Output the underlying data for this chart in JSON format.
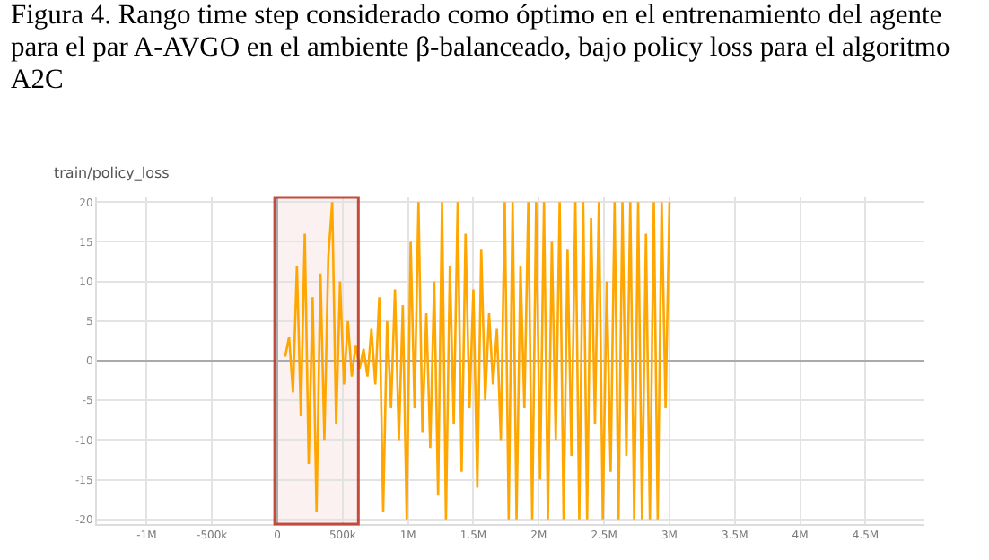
{
  "chart_data": {
    "type": "line",
    "title": "Figura 4. Rango time step considerado como óptimo en el entrenamiento del agente para el par A-AVGO en el ambiente β-balanceado, bajo policy loss para el algoritmo A2C",
    "subtitle": "train/policy_loss",
    "x": [
      60000,
      90000,
      120000,
      150000,
      180000,
      210000,
      240000,
      270000,
      300000,
      330000,
      360000,
      390000,
      420000,
      450000,
      480000,
      510000,
      540000,
      570000,
      600000,
      630000,
      660000,
      690000,
      720000,
      750000,
      780000,
      810000,
      840000,
      870000,
      900000,
      930000,
      960000,
      990000,
      1020000,
      1050000,
      1080000,
      1110000,
      1140000,
      1170000,
      1200000,
      1230000,
      1260000,
      1290000,
      1320000,
      1350000,
      1380000,
      1410000,
      1440000,
      1470000,
      1500000,
      1530000,
      1560000,
      1590000,
      1620000,
      1650000,
      1680000,
      1710000,
      1740000,
      1770000,
      1800000,
      1830000,
      1860000,
      1890000,
      1920000,
      1950000,
      1980000,
      2010000,
      2040000,
      2070000,
      2100000,
      2130000,
      2160000,
      2190000,
      2220000,
      2250000,
      2280000,
      2310000,
      2340000,
      2370000,
      2400000,
      2430000,
      2460000,
      2490000,
      2520000,
      2550000,
      2580000,
      2610000,
      2640000,
      2670000,
      2700000,
      2730000,
      2760000,
      2790000,
      2820000,
      2850000,
      2880000,
      2910000,
      2940000,
      2970000,
      3000000
    ],
    "series": [
      {
        "color": "#ffa600",
        "values": [
          0.5,
          3,
          -4,
          12,
          -7,
          16,
          -13,
          8,
          -19,
          11,
          -10,
          13,
          20,
          -8,
          10,
          -3,
          5,
          -2,
          2,
          -1,
          1.5,
          -2,
          4,
          -3,
          8,
          -19,
          5,
          -6,
          9,
          -10,
          7,
          -20,
          15,
          -6,
          20,
          -9,
          6,
          -11,
          10,
          -17,
          20,
          -20,
          12,
          -8,
          20,
          -14,
          16,
          -6,
          9,
          -16,
          14,
          -5,
          6,
          -3,
          4,
          -10,
          20,
          -20,
          20,
          -20,
          12,
          -6,
          20,
          -20,
          20,
          -15,
          20,
          -20,
          15,
          -10,
          20,
          -20,
          14,
          -12,
          20,
          -20,
          20,
          -20,
          18,
          -8,
          20,
          -20,
          10,
          -14,
          20,
          -20,
          20,
          -12,
          20,
          -20,
          20,
          -20,
          16,
          -20,
          20,
          -20,
          20,
          -6,
          20
        ]
      }
    ],
    "xlim": [
      -1380000,
      4950000
    ],
    "xticks": [
      {
        "value": -1000000,
        "label": "-1M"
      },
      {
        "value": -500000,
        "label": "-500k"
      },
      0,
      {
        "value": 500000,
        "label": "500k"
      },
      {
        "value": 1000000,
        "label": "1M"
      },
      {
        "value": 1500000,
        "label": "1.5M"
      },
      {
        "value": 2000000,
        "label": "2M"
      },
      {
        "value": 2500000,
        "label": "2.5M"
      },
      {
        "value": 3000000,
        "label": "3M"
      },
      {
        "value": 3500000,
        "label": "3.5M"
      },
      {
        "value": 4000000,
        "label": "4M"
      },
      {
        "value": 4500000,
        "label": "4.5M"
      }
    ],
    "ylim": [
      -20.6,
      20.6
    ],
    "yticks": [
      -20,
      -15,
      -10,
      -5,
      0,
      5,
      10,
      15,
      20
    ],
    "grid": true,
    "marker": "none",
    "line_style": "solid",
    "bands": [
      {
        "axis": "x",
        "from": -20000,
        "to": 620000,
        "color": "#c0392b"
      }
    ]
  }
}
